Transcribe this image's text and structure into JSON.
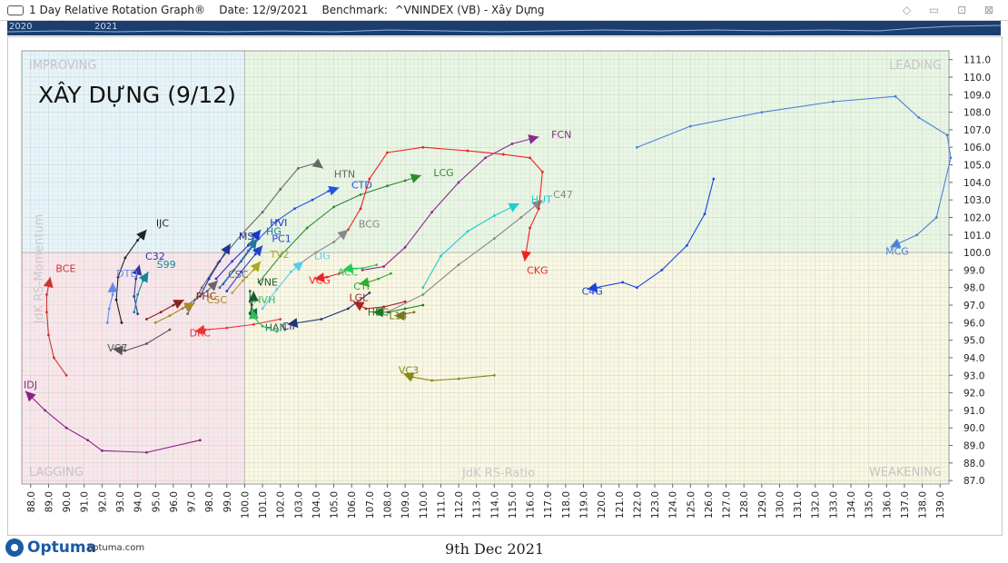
{
  "window": {
    "title": "1 Day Relative Rotation Graph®    Date: 12/9/2021    Benchmark:  ^VNINDEX (VB) - Xây Dựng"
  },
  "timeline": {
    "labels": [
      "2020",
      "2021"
    ]
  },
  "footer": {
    "brand": "Optuma",
    "site": "optuma.com",
    "date": "9th Dec 2021"
  },
  "chart_data": {
    "type": "scatter",
    "title": "XÂY DỰNG (9/12)",
    "xlabel": "JdK RS-Ratio",
    "ylabel": "JdK RS-Momentum",
    "xlim": [
      87.5,
      139.5
    ],
    "ylim": [
      86.8,
      111.5
    ],
    "xticks": [
      "88.0",
      "89.0",
      "90.0",
      "91.0",
      "92.0",
      "93.0",
      "94.0",
      "95.0",
      "96.0",
      "97.0",
      "98.0",
      "99.0",
      "100.0",
      "101.0",
      "102.0",
      "103.0",
      "104.0",
      "105.0",
      "106.0",
      "107.0",
      "108.0",
      "109.0",
      "110.0",
      "111.0",
      "112.0",
      "113.0",
      "114.0",
      "115.0",
      "116.0",
      "117.0",
      "118.0",
      "119.0",
      "120.0",
      "121.0",
      "122.0",
      "123.0",
      "124.0",
      "125.0",
      "126.0",
      "127.0",
      "128.0",
      "129.0",
      "130.0",
      "131.0",
      "132.0",
      "133.0",
      "134.0",
      "135.0",
      "136.0",
      "137.0",
      "138.0",
      "139.0"
    ],
    "yticks": [
      "87.0",
      "88.0",
      "89.0",
      "90.0",
      "91.0",
      "92.0",
      "93.0",
      "94.0",
      "95.0",
      "96.0",
      "97.0",
      "98.0",
      "99.0",
      "100.0",
      "101.0",
      "102.0",
      "103.0",
      "104.0",
      "105.0",
      "106.0",
      "107.0",
      "108.0",
      "109.0",
      "110.0",
      "111.0"
    ],
    "quadrants": [
      {
        "name": "IMPROVING",
        "color": "#e6f5fb"
      },
      {
        "name": "LEADING",
        "color": "#e9f7e4"
      },
      {
        "name": "LAGGING",
        "color": "#fbe6ec"
      },
      {
        "name": "WEAKENING",
        "color": "#fbf8e2"
      }
    ],
    "series": [
      {
        "name": "FCN",
        "color": "#8a2a8a",
        "points": [
          [
            106.6,
            99.0
          ],
          [
            107.8,
            99.2
          ],
          [
            109.0,
            100.3
          ],
          [
            110.5,
            102.3
          ],
          [
            112.0,
            104.0
          ],
          [
            113.5,
            105.4
          ],
          [
            115.0,
            106.2
          ],
          [
            116.5,
            106.6
          ]
        ]
      },
      {
        "name": "HTN",
        "color": "#666666",
        "points": [
          [
            96.8,
            96.5
          ],
          [
            97.6,
            98.0
          ],
          [
            98.5,
            99.4
          ],
          [
            99.8,
            101.0
          ],
          [
            101.0,
            102.3
          ],
          [
            102.0,
            103.6
          ],
          [
            103.0,
            104.8
          ],
          [
            104.0,
            105.1
          ],
          [
            104.4,
            104.8
          ]
        ]
      },
      {
        "name": "LCG",
        "color": "#2e8b2e",
        "points": [
          [
            100.8,
            98.3
          ],
          [
            102.0,
            99.8
          ],
          [
            103.5,
            101.4
          ],
          [
            105.0,
            102.6
          ],
          [
            106.5,
            103.3
          ],
          [
            108.0,
            103.8
          ],
          [
            109.0,
            104.1
          ],
          [
            109.9,
            104.4
          ]
        ]
      },
      {
        "name": "CTD",
        "color": "#2255dd",
        "points": [
          [
            98.8,
            98.2
          ],
          [
            99.8,
            99.5
          ],
          [
            100.8,
            100.8
          ],
          [
            101.8,
            101.8
          ],
          [
            102.8,
            102.5
          ],
          [
            103.8,
            103.0
          ],
          [
            104.7,
            103.5
          ],
          [
            105.3,
            103.7
          ]
        ]
      },
      {
        "name": "C47",
        "color": "#888888",
        "points": [
          [
            108.0,
            96.6
          ],
          [
            110.0,
            97.6
          ],
          [
            112.0,
            99.3
          ],
          [
            114.0,
            100.8
          ],
          [
            115.5,
            102.0
          ],
          [
            116.7,
            103.0
          ]
        ]
      },
      {
        "name": "HUT",
        "color": "#22cccc",
        "points": [
          [
            110.0,
            98.0
          ],
          [
            111.0,
            99.8
          ],
          [
            112.5,
            101.2
          ],
          [
            114.0,
            102.1
          ],
          [
            115.4,
            102.8
          ]
        ]
      },
      {
        "name": "CKG",
        "color": "#ee2222",
        "points": [
          [
            105.8,
            101.3
          ],
          [
            106.5,
            102.5
          ],
          [
            107.0,
            104.2
          ],
          [
            108.0,
            105.7
          ],
          [
            110.0,
            106.0
          ],
          [
            112.5,
            105.8
          ],
          [
            114.5,
            105.6
          ],
          [
            116.0,
            105.4
          ],
          [
            116.7,
            104.6
          ],
          [
            116.5,
            102.5
          ],
          [
            116.0,
            101.4
          ],
          [
            115.7,
            99.5
          ]
        ]
      },
      {
        "name": "C4G",
        "color": "#1a44dd",
        "points": [
          [
            126.3,
            104.2
          ],
          [
            125.8,
            102.2
          ],
          [
            124.8,
            100.4
          ],
          [
            123.4,
            99.0
          ],
          [
            122.0,
            98.0
          ],
          [
            121.2,
            98.3
          ],
          [
            119.2,
            97.9
          ]
        ]
      },
      {
        "name": "MCG",
        "color": "#4a82d6",
        "points": [
          [
            122.0,
            106.0
          ],
          [
            125.0,
            107.2
          ],
          [
            129.0,
            108.0
          ],
          [
            133.0,
            108.6
          ],
          [
            136.5,
            108.9
          ],
          [
            137.8,
            107.7
          ],
          [
            139.4,
            106.7
          ],
          [
            139.6,
            105.4
          ],
          [
            138.8,
            102.0
          ],
          [
            137.7,
            101.0
          ],
          [
            136.2,
            100.3
          ]
        ]
      },
      {
        "name": "IJC",
        "color": "#222222",
        "points": [
          [
            93.1,
            96.0
          ],
          [
            92.8,
            97.3
          ],
          [
            92.9,
            98.6
          ],
          [
            93.3,
            99.7
          ],
          [
            94.0,
            100.7
          ],
          [
            94.5,
            101.3
          ]
        ]
      },
      {
        "name": "MST",
        "color": "#223399",
        "points": [
          [
            97.5,
            97.5
          ],
          [
            98.0,
            98.5
          ],
          [
            98.6,
            99.5
          ],
          [
            99.2,
            100.5
          ]
        ]
      },
      {
        "name": "HVI",
        "color": "#1a33cc",
        "points": [
          [
            98.4,
            98.5
          ],
          [
            99.3,
            99.5
          ],
          [
            100.2,
            100.4
          ],
          [
            100.9,
            101.3
          ]
        ]
      },
      {
        "name": "HG",
        "color": "#227799",
        "points": [
          [
            98.6,
            98.0
          ],
          [
            99.4,
            99.0
          ],
          [
            100.2,
            100.1
          ],
          [
            100.7,
            100.8
          ]
        ]
      },
      {
        "name": "PC1",
        "color": "#2244cc",
        "points": [
          [
            99.0,
            97.8
          ],
          [
            99.8,
            98.9
          ],
          [
            100.6,
            99.9
          ],
          [
            101.0,
            100.4
          ]
        ]
      },
      {
        "name": "BCG",
        "color": "#888888",
        "points": [
          [
            103.0,
            99.3
          ],
          [
            104.0,
            100.0
          ],
          [
            105.0,
            100.6
          ],
          [
            105.8,
            101.3
          ]
        ]
      },
      {
        "name": "TV2",
        "color": "#aaaa22",
        "points": [
          [
            99.3,
            97.7
          ],
          [
            99.9,
            98.4
          ],
          [
            100.5,
            99.0
          ],
          [
            100.9,
            99.5
          ]
        ]
      },
      {
        "name": "LIG",
        "color": "#55ccee",
        "points": [
          [
            101.0,
            96.8
          ],
          [
            101.8,
            97.9
          ],
          [
            102.6,
            98.9
          ],
          [
            103.3,
            99.5
          ]
        ]
      },
      {
        "name": "CSC",
        "color": "#666666",
        "points": [
          [
            96.5,
            96.8
          ],
          [
            97.2,
            97.3
          ],
          [
            97.9,
            97.8
          ],
          [
            98.5,
            98.4
          ]
        ]
      },
      {
        "name": "C32",
        "color": "#333399",
        "points": [
          [
            94.0,
            96.5
          ],
          [
            93.8,
            97.5
          ],
          [
            93.9,
            98.5
          ],
          [
            94.1,
            99.3
          ]
        ]
      },
      {
        "name": "S99",
        "color": "#118899",
        "points": [
          [
            93.8,
            96.6
          ],
          [
            94.0,
            97.6
          ],
          [
            94.3,
            98.4
          ],
          [
            94.6,
            98.9
          ]
        ]
      },
      {
        "name": "DTD",
        "color": "#6688ee",
        "points": [
          [
            92.3,
            96.0
          ],
          [
            92.4,
            96.8
          ],
          [
            92.6,
            97.6
          ],
          [
            92.6,
            98.3
          ]
        ]
      },
      {
        "name": "BCE",
        "color": "#cc3333",
        "points": [
          [
            90.0,
            93.0
          ],
          [
            89.3,
            94.0
          ],
          [
            89.0,
            95.3
          ],
          [
            88.9,
            96.6
          ],
          [
            88.9,
            97.6
          ],
          [
            89.1,
            98.6
          ]
        ]
      },
      {
        "name": "PHC",
        "color": "#882222",
        "points": [
          [
            94.5,
            96.2
          ],
          [
            95.3,
            96.6
          ],
          [
            96.0,
            97.0
          ],
          [
            96.6,
            97.3
          ]
        ]
      },
      {
        "name": "CSC",
        "color": "#aa8822",
        "points": [
          [
            95.0,
            96.0
          ],
          [
            95.8,
            96.4
          ],
          [
            96.5,
            96.8
          ],
          [
            97.2,
            97.1
          ]
        ]
      },
      {
        "name": "VC7",
        "color": "#555555",
        "points": [
          [
            95.8,
            95.6
          ],
          [
            94.5,
            94.8
          ],
          [
            93.3,
            94.4
          ],
          [
            92.6,
            94.5
          ]
        ]
      },
      {
        "name": "DRC",
        "color": "#ee3333",
        "points": [
          [
            102.0,
            96.2
          ],
          [
            100.5,
            95.9
          ],
          [
            99.0,
            95.7
          ],
          [
            97.8,
            95.6
          ],
          [
            97.2,
            95.5
          ]
        ]
      },
      {
        "name": "HAN",
        "color": "#1a6655",
        "points": [
          [
            100.3,
            97.8
          ],
          [
            100.3,
            97.2
          ],
          [
            100.5,
            96.6
          ],
          [
            100.7,
            96.2
          ]
        ]
      },
      {
        "name": "HVH",
        "color": "#33bb55",
        "points": [
          [
            101.8,
            95.5
          ],
          [
            101.0,
            95.8
          ],
          [
            100.5,
            96.3
          ],
          [
            100.4,
            96.8
          ]
        ]
      },
      {
        "name": "VNE",
        "color": "#225533",
        "points": [
          [
            100.3,
            96.5
          ],
          [
            100.4,
            97.0
          ],
          [
            100.5,
            97.5
          ],
          [
            100.5,
            97.8
          ]
        ]
      },
      {
        "name": "VCG",
        "color": "#ee2222",
        "points": [
          [
            106.0,
            99.1
          ],
          [
            105.3,
            98.8
          ],
          [
            104.6,
            98.6
          ],
          [
            103.9,
            98.5
          ]
        ]
      },
      {
        "name": "ACC",
        "color": "#22cc55",
        "points": [
          [
            107.4,
            99.3
          ],
          [
            106.6,
            99.1
          ],
          [
            106.0,
            99.1
          ],
          [
            105.5,
            99.0
          ]
        ]
      },
      {
        "name": "CTI",
        "color": "#33aa33",
        "points": [
          [
            108.2,
            98.8
          ],
          [
            107.5,
            98.5
          ],
          [
            106.9,
            98.3
          ],
          [
            106.4,
            98.2
          ]
        ]
      },
      {
        "name": "CII",
        "color": "#223377",
        "points": [
          [
            107.0,
            97.7
          ],
          [
            105.8,
            96.8
          ],
          [
            104.3,
            96.2
          ],
          [
            102.4,
            95.9
          ]
        ]
      },
      {
        "name": "LGL",
        "color": "#aa2222",
        "points": [
          [
            109.0,
            97.2
          ],
          [
            107.8,
            96.9
          ],
          [
            106.8,
            96.8
          ],
          [
            106.1,
            97.2
          ]
        ]
      },
      {
        "name": "HBC",
        "color": "#227722",
        "points": [
          [
            110.0,
            97.0
          ],
          [
            109.0,
            96.8
          ],
          [
            108.1,
            96.6
          ],
          [
            107.2,
            96.6
          ]
        ]
      },
      {
        "name": "L14",
        "color": "#777722",
        "points": [
          [
            109.5,
            96.6
          ],
          [
            109.0,
            96.5
          ],
          [
            108.6,
            96.4
          ],
          [
            108.4,
            96.4
          ]
        ]
      },
      {
        "name": "VC3",
        "color": "#888811",
        "points": [
          [
            114.0,
            93.0
          ],
          [
            112.0,
            92.8
          ],
          [
            110.5,
            92.7
          ],
          [
            109.4,
            92.9
          ],
          [
            108.9,
            93.1
          ]
        ]
      },
      {
        "name": "IDJ",
        "color": "#882288",
        "points": [
          [
            97.5,
            89.3
          ],
          [
            94.5,
            88.6
          ],
          [
            92.0,
            88.7
          ],
          [
            91.2,
            89.3
          ],
          [
            90.0,
            90.0
          ],
          [
            88.8,
            91.0
          ],
          [
            87.7,
            92.1
          ]
        ]
      }
    ]
  }
}
